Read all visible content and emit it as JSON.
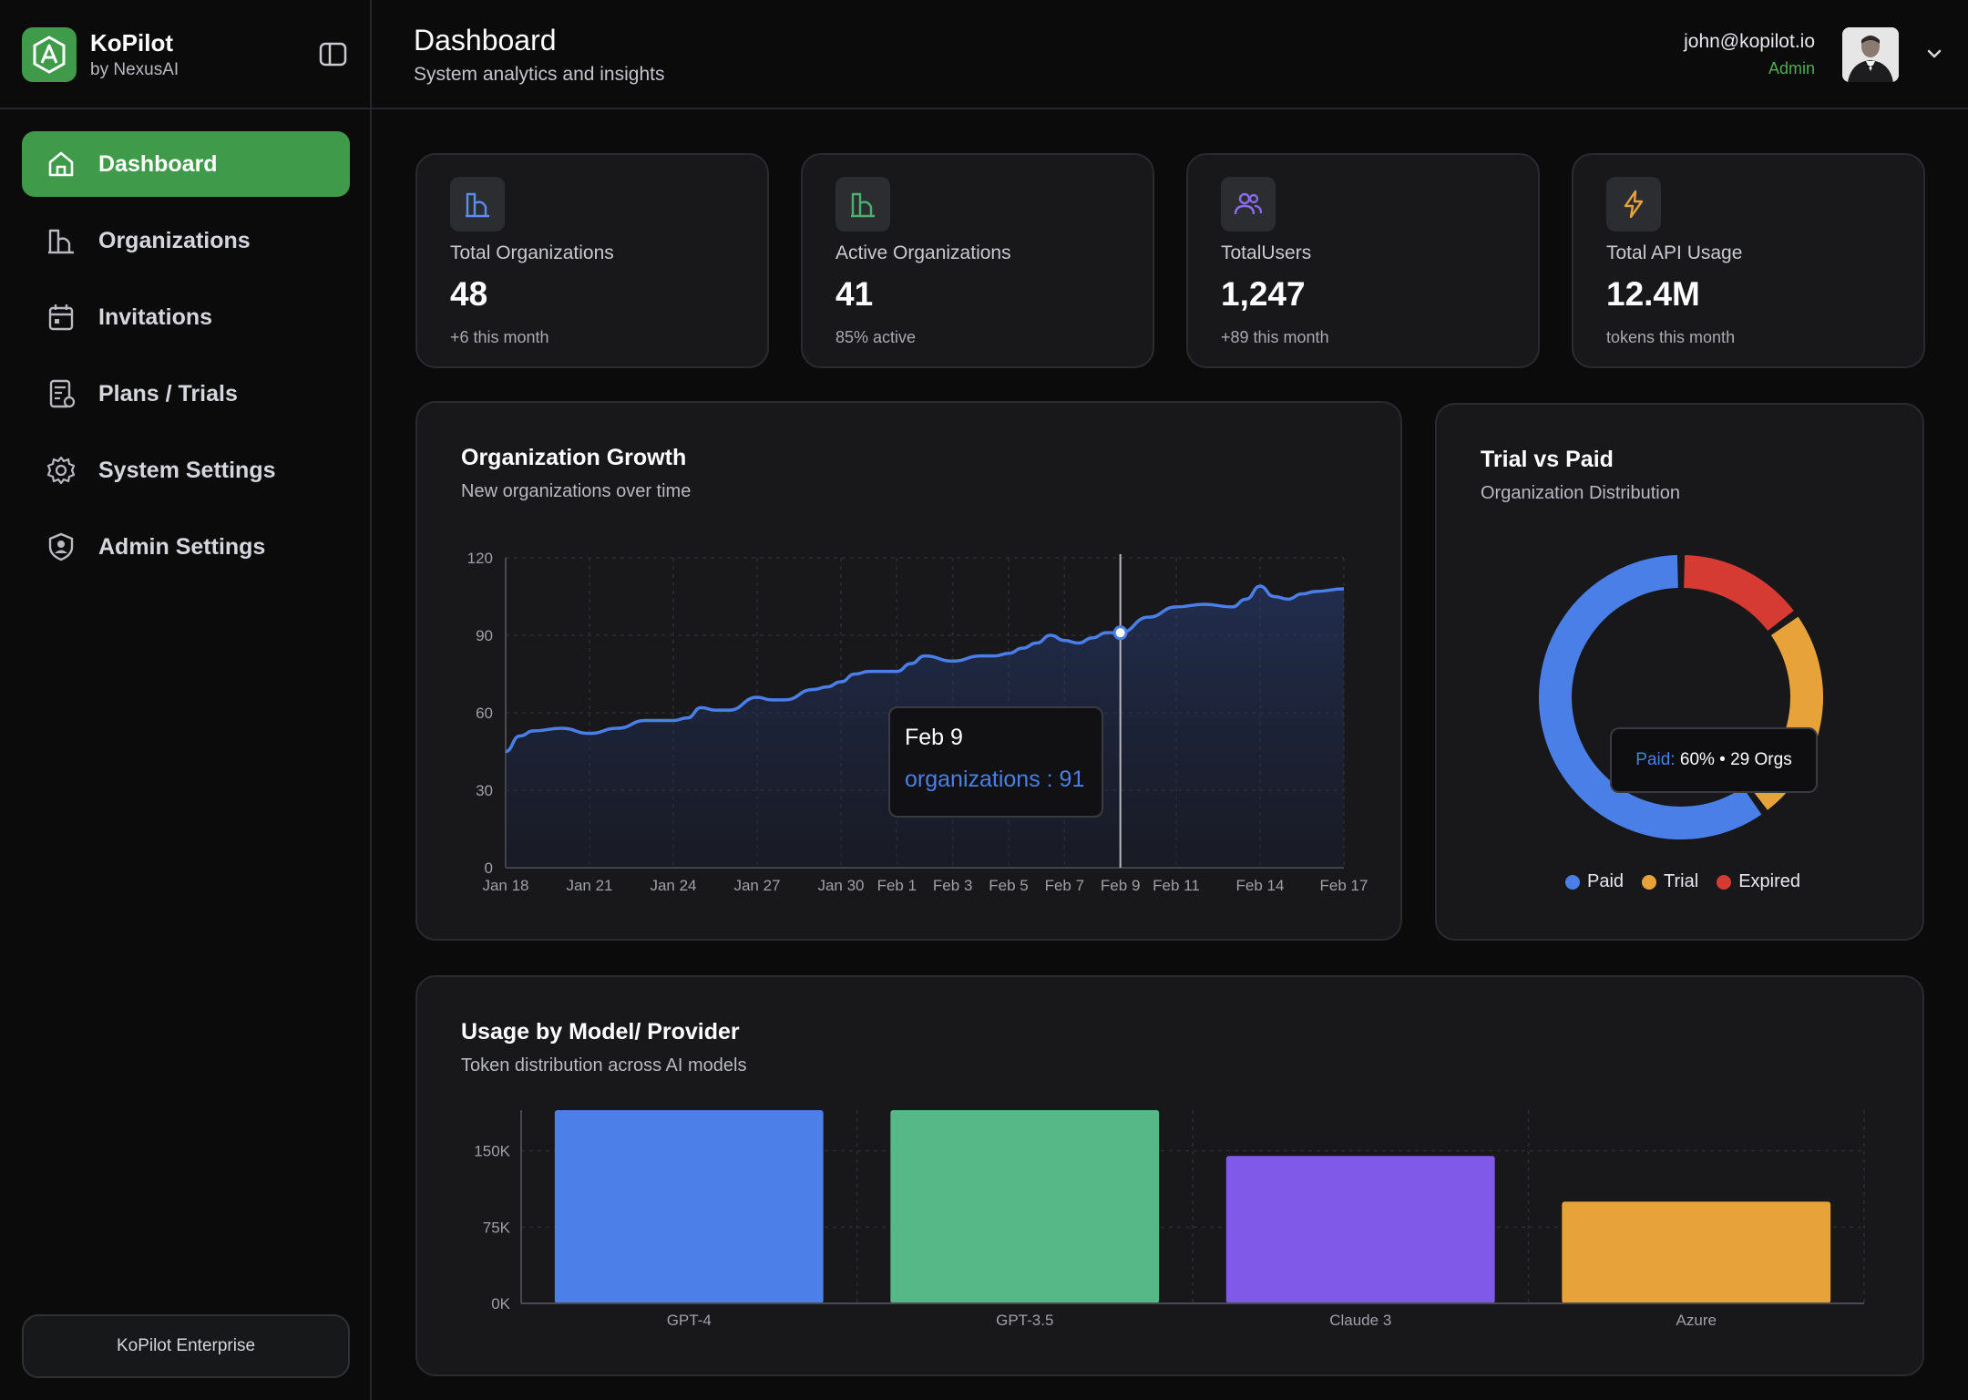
{
  "brand": {
    "name": "KoPilot",
    "sub": "by NexusAI"
  },
  "sidebar": {
    "items": [
      {
        "label": "Dashboard",
        "icon": "home-icon",
        "active": true
      },
      {
        "label": "Organizations",
        "icon": "building-icon"
      },
      {
        "label": "Invitations",
        "icon": "calendar-icon"
      },
      {
        "label": "Plans / Trials",
        "icon": "receipt-icon"
      },
      {
        "label": "System Settings",
        "icon": "gear-icon"
      },
      {
        "label": "Admin Settings",
        "icon": "shield-user-icon"
      }
    ],
    "footer": "KoPilot Enterprise"
  },
  "header": {
    "title": "Dashboard",
    "subtitle": "System analytics and insights",
    "user_email": "john@kopilot.io",
    "user_role": "Admin"
  },
  "stats": [
    {
      "label": "Total Organizations",
      "value": "48",
      "note": "+6 this month",
      "icon": "building-icon",
      "color": "#5b8def"
    },
    {
      "label": "Active Organizations",
      "value": "41",
      "note": "85% active",
      "icon": "building-icon",
      "color": "#4caf6e"
    },
    {
      "label": "TotalUsers",
      "value": "1,247",
      "note": "+89 this month",
      "icon": "users-icon",
      "color": "#8b6cf0"
    },
    {
      "label": "Total API Usage",
      "value": "12.4M",
      "note": "tokens this month",
      "icon": "lightning-icon",
      "color": "#e8a23a"
    }
  ],
  "growth": {
    "title": "Organization Growth",
    "subtitle": "New organizations over time",
    "tooltip": {
      "title": "Feb 9",
      "value": "organizations : 91"
    }
  },
  "trial": {
    "title": "Trial vs Paid",
    "subtitle": "Organization Distribution",
    "tooltip": {
      "series": "Paid:",
      "detail": " 60% • 29 Orgs"
    },
    "legend": [
      {
        "label": "Paid",
        "color": "#4a7fe8"
      },
      {
        "label": "Trial",
        "color": "#e8a23a"
      },
      {
        "label": "Expired",
        "color": "#d63b33"
      }
    ]
  },
  "usage": {
    "title": "Usage by Model/ Provider",
    "subtitle": "Token distribution across AI models"
  },
  "chart_data": [
    {
      "type": "area",
      "title": "Organization Growth",
      "ylim": [
        0,
        120
      ],
      "yticks": [
        0,
        30,
        60,
        90,
        120
      ],
      "x_tick_labels": [
        "Jan 18",
        "Jan 21",
        "Jan 24",
        "Jan 27",
        "Jan 30",
        "Feb 1",
        "Feb 3",
        "Feb 5",
        "Feb 7",
        "Feb 9",
        "Feb 11",
        "Feb 14",
        "Feb 17"
      ],
      "x_tick_days": [
        0,
        3,
        6,
        9,
        12,
        14,
        16,
        18,
        20,
        22,
        24,
        27,
        30
      ],
      "x": [
        0,
        0.5,
        1,
        2,
        3,
        4,
        5,
        6,
        6.5,
        7,
        7.5,
        8,
        9,
        9.5,
        10,
        11,
        11.5,
        12,
        12.5,
        13,
        14,
        14.5,
        15,
        16,
        17,
        17.5,
        18,
        18.5,
        19,
        19.5,
        20,
        20.5,
        21,
        21.5,
        22,
        23,
        24,
        25,
        26,
        26.5,
        27,
        27.5,
        28,
        28.5,
        29,
        30
      ],
      "series": [
        {
          "values": [
            45,
            51,
            53,
            54,
            52,
            54,
            57,
            57,
            58,
            62,
            61,
            61,
            66,
            65,
            65,
            69,
            70,
            72,
            75,
            76,
            76,
            79,
            82,
            80,
            82,
            82,
            83,
            85,
            87,
            90,
            88,
            87,
            89,
            91,
            91,
            97,
            101,
            102,
            101,
            104,
            109,
            105,
            104,
            106,
            107,
            108
          ],
          "color": "#4a7fe8"
        }
      ],
      "highlight": {
        "x_label": "Feb 9",
        "value": 91
      },
      "grid": true
    },
    {
      "type": "pie",
      "title": "Trial vs Paid",
      "labels": [
        "Paid",
        "Trial",
        "Expired"
      ],
      "values": [
        60,
        25,
        15
      ],
      "colors": [
        "#4a7fe8",
        "#e8a23a",
        "#d63b33"
      ],
      "donut": true
    },
    {
      "type": "bar",
      "title": "Usage by Model/ Provider",
      "categories": [
        "GPT-4",
        "GPT-3.5",
        "Claude 3",
        "Azure"
      ],
      "values": [
        190000,
        190000,
        145000,
        100000
      ],
      "colors": [
        "#4d7fe8",
        "#56b886",
        "#8059e8",
        "#e8a23a"
      ],
      "ylim": [
        0,
        190000
      ],
      "yticks": [
        0,
        75000,
        150000
      ],
      "ytick_labels": [
        "0K",
        "75K",
        "150K"
      ],
      "grid": true
    }
  ]
}
